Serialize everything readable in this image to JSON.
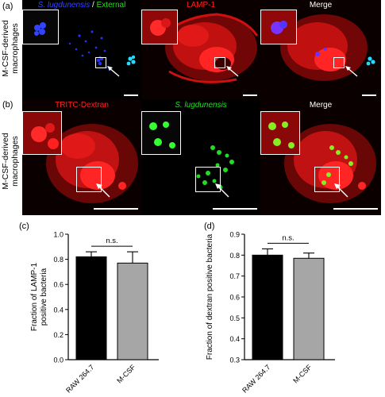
{
  "figure": {
    "panel_labels": [
      "(a)",
      "(b)",
      "(c)",
      "(d)"
    ],
    "row_label": [
      "M-CSF-derived",
      "macrophages"
    ]
  },
  "row_a": {
    "title_1_part1": "S. lugdunensis",
    "title_1_sep": " / ",
    "title_1_part2": "External",
    "title_2": "LAMP-1",
    "title_3": "Merge"
  },
  "row_b": {
    "title_1": "TRITC-Dextran",
    "title_2": "S. lugdunensis",
    "title_3": "Merge"
  },
  "colors": {
    "blue_bacteria": "#2233ff",
    "green": "#22dd22",
    "cyan": "#22ddff",
    "red": "#ff2020",
    "bar_black": "#000000",
    "bar_grey": "#a6a6a6"
  },
  "chart_data": [
    {
      "type": "bar",
      "panel": "(c)",
      "categories": [
        "RAW 264.7",
        "M-CSF"
      ],
      "values": [
        0.82,
        0.77
      ],
      "errors": [
        0.04,
        0.09
      ],
      "ylabel": "Fraction of LAMP-1 positive bacteria",
      "ylabel_lines": [
        "Fraction of LAMP-1",
        "positive bacteria"
      ],
      "ylim": [
        0.0,
        1.0
      ],
      "yticks": [
        "0.0",
        "0.2",
        "0.4",
        "0.6",
        "0.8",
        "1.0"
      ],
      "annotation": "n.s."
    },
    {
      "type": "bar",
      "panel": "(d)",
      "categories": [
        "RAW 264.7",
        "M-CSF"
      ],
      "values": [
        0.8,
        0.785
      ],
      "errors": [
        0.03,
        0.025
      ],
      "ylabel": "Fraction of dextran positive bacteria",
      "ylim": [
        0.3,
        0.9
      ],
      "yticks": [
        "0.3",
        "0.4",
        "0.5",
        "0.6",
        "0.7",
        "0.8",
        "0.9"
      ],
      "annotation": "n.s."
    }
  ]
}
